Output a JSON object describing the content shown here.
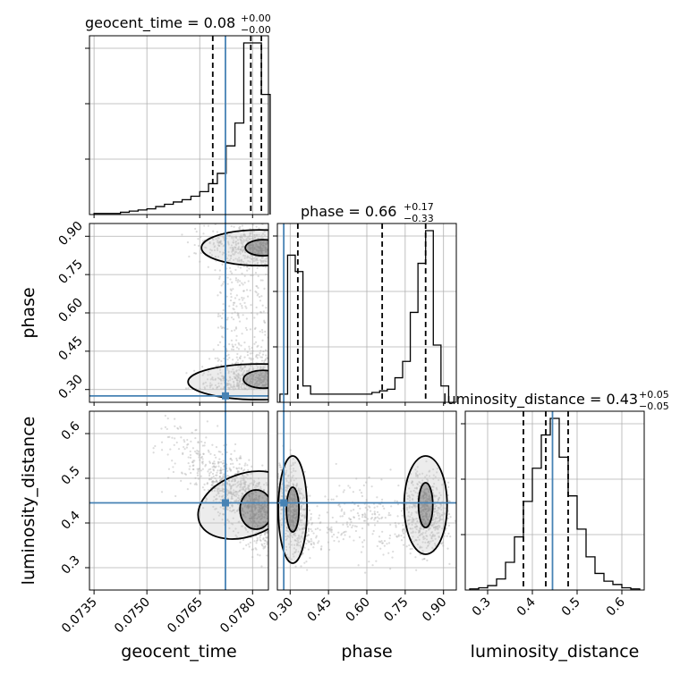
{
  "chart_data": {
    "type": "corner",
    "parameters": [
      "geocent_time",
      "phase",
      "luminosity_distance"
    ],
    "axis_labels": {
      "x": [
        "geocent_time",
        "phase",
        "luminosity_distance"
      ],
      "y": [
        "phase",
        "luminosity_distance"
      ]
    },
    "titles": [
      {
        "name": "geocent_time",
        "text": "geocent_time = 0.08",
        "median": "0.08",
        "plus": "+0.00",
        "minus": "−0.00"
      },
      {
        "name": "phase",
        "text": "phase = 0.66",
        "median": "0.66",
        "plus": "+0.17",
        "minus": "−0.33"
      },
      {
        "name": "luminosity_distance",
        "text": "luminosity_distance = 0.43",
        "median": "0.43",
        "plus": "+0.05",
        "minus": "−0.05"
      }
    ],
    "ticks": {
      "geocent_time": [
        "0.0735",
        "0.0750",
        "0.0765",
        "0.0780"
      ],
      "phase_x": [
        "0.30",
        "0.45",
        "0.60",
        "0.75",
        "0.90"
      ],
      "luminosity_distance_x": [
        "0.3",
        "0.4",
        "0.5",
        "0.6"
      ],
      "phase_y": [
        "0.30",
        "0.45",
        "0.60",
        "0.75",
        "0.90"
      ],
      "luminosity_distance_y": [
        "0.3",
        "0.4",
        "0.5",
        "0.6"
      ]
    },
    "ranges": {
      "geocent_time": [
        0.07337,
        0.07845
      ],
      "phase": [
        0.25,
        0.95
      ],
      "luminosity_distance": [
        0.25,
        0.65
      ]
    },
    "truths": {
      "geocent_time": 0.07723,
      "phase": 0.275,
      "luminosity_distance": 0.445
    },
    "quantiles": {
      "geocent_time": [
        0.07687,
        0.07795,
        0.07825
      ],
      "phase": [
        0.33,
        0.66,
        0.83
      ],
      "luminosity_distance": [
        0.38,
        0.43,
        0.48
      ]
    },
    "hist_geocent_time": {
      "bin_edges": [
        0.0735,
        0.07375,
        0.074,
        0.07425,
        0.0745,
        0.07475,
        0.075,
        0.07525,
        0.0755,
        0.07575,
        0.076,
        0.07625,
        0.0765,
        0.07675,
        0.077,
        0.07725,
        0.0775,
        0.07775,
        0.078,
        0.07825,
        0.0785
      ],
      "counts": [
        1,
        1,
        1,
        2,
        3,
        4,
        5,
        7,
        9,
        11,
        13,
        16,
        20,
        27,
        36,
        60,
        80,
        150,
        150,
        105
      ]
    },
    "hist_phase": {
      "bin_edges": [
        0.26,
        0.29,
        0.32,
        0.35,
        0.38,
        0.41,
        0.44,
        0.47,
        0.5,
        0.53,
        0.56,
        0.59,
        0.62,
        0.65,
        0.68,
        0.71,
        0.74,
        0.77,
        0.8,
        0.83,
        0.86,
        0.89,
        0.92
      ],
      "counts": [
        10,
        180,
        160,
        20,
        10,
        10,
        10,
        10,
        10,
        10,
        10,
        10,
        12,
        14,
        16,
        30,
        50,
        110,
        170,
        210,
        70,
        20
      ]
    },
    "hist_luminosity_distance": {
      "bin_edges": [
        0.26,
        0.28,
        0.3,
        0.32,
        0.34,
        0.36,
        0.38,
        0.4,
        0.42,
        0.44,
        0.46,
        0.48,
        0.5,
        0.52,
        0.54,
        0.56,
        0.58,
        0.6,
        0.62,
        0.64
      ],
      "counts": [
        1,
        2,
        4,
        10,
        25,
        48,
        80,
        110,
        140,
        155,
        120,
        85,
        55,
        30,
        15,
        8,
        5,
        2,
        1
      ]
    },
    "grid": true,
    "colors": {
      "truth": "#4682b4",
      "contour": "#000000",
      "points": "#b0b0b0",
      "hist": "#000000"
    }
  }
}
